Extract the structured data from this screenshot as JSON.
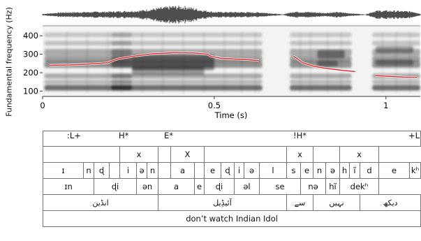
{
  "chart_data": {
    "type": "line",
    "ylabel": "Fundamental frequency (Hz)",
    "xlabel": "Time (s)",
    "xlim": [
      0,
      1.1
    ],
    "ylim": [
      75,
      450
    ],
    "yticks": [
      100,
      200,
      300,
      400
    ],
    "xticks": [
      0,
      0.5,
      1
    ],
    "xtick_labels": [
      "0",
      "0.5",
      "1"
    ],
    "ytick_labels": [
      "100",
      "200",
      "300",
      "400"
    ],
    "series": [
      {
        "segments": [
          [
            [
              0.02,
              240
            ],
            [
              0.08,
              242
            ],
            [
              0.14,
              247
            ],
            [
              0.19,
              254
            ],
            [
              0.22,
              275
            ],
            [
              0.27,
              290
            ],
            [
              0.32,
              302
            ],
            [
              0.38,
              308
            ],
            [
              0.44,
              307
            ],
            [
              0.48,
              300
            ],
            [
              0.49,
              289
            ],
            [
              0.52,
              278
            ],
            [
              0.56,
              274
            ],
            [
              0.6,
              270
            ],
            [
              0.63,
              265
            ]
          ],
          [
            [
              0.73,
              290
            ],
            [
              0.76,
              252
            ],
            [
              0.79,
              235
            ],
            [
              0.82,
              225
            ],
            [
              0.87,
              213
            ],
            [
              0.91,
              206
            ]
          ],
          [
            [
              0.97,
              185
            ],
            [
              1.01,
              180
            ],
            [
              1.05,
              176
            ],
            [
              1.09,
              175
            ]
          ]
        ],
        "color": "#e02020"
      }
    ]
  },
  "tiers": {
    "tones": {
      "labels": [
        {
          "text": ":L+"
        },
        {
          "text": "H*"
        },
        {
          "text": "E*"
        },
        {
          "text": "!H*"
        },
        {
          "text": "+L"
        }
      ]
    },
    "stress": [
      {
        "text": "",
        "span": 4
      },
      {
        "text": "x",
        "span": 3
      },
      {
        "text": "",
        "span": 1
      },
      {
        "text": "X",
        "span": 2
      },
      {
        "text": "",
        "span": 5
      },
      {
        "text": "x",
        "span": 2
      },
      {
        "text": "",
        "span": 2
      },
      {
        "text": "x",
        "span": 3
      }
    ],
    "phones": [
      "ɪ",
      "n",
      "ɖ",
      "",
      "i",
      "ə",
      "n",
      "",
      "a",
      "",
      "e",
      "ɖ",
      "i",
      "ə",
      "l",
      "s",
      "e",
      "n",
      "ə",
      "h",
      "ĩ",
      "d",
      "e",
      "kʰ"
    ],
    "syllables": [
      {
        "text": "ɪn",
        "span": 2
      },
      {
        "text": "ɖi",
        "span": 3
      },
      {
        "text": "ən",
        "span": 2
      },
      {
        "text": "a",
        "span": 2
      },
      {
        "text": "e",
        "span": 1
      },
      {
        "text": "ɖi",
        "span": 2
      },
      {
        "text": "əl",
        "span": 2
      },
      {
        "text": "se",
        "span": 2
      },
      {
        "text": "nə",
        "span": 2
      },
      {
        "text": "hĩ",
        "span": 1
      },
      {
        "text": "dekʰ",
        "span": 3
      }
    ],
    "words": [
      {
        "text": "انڈین",
        "span": 7
      },
      {
        "text": "آئیڈِیل",
        "span": 8
      },
      {
        "text": "سے",
        "span": 2
      },
      {
        "text": "نہیں",
        "span": 4
      },
      {
        "text": "دیکھ",
        "span": 3
      }
    ],
    "translation": {
      "text": "don’t watch Indian Idol"
    }
  }
}
